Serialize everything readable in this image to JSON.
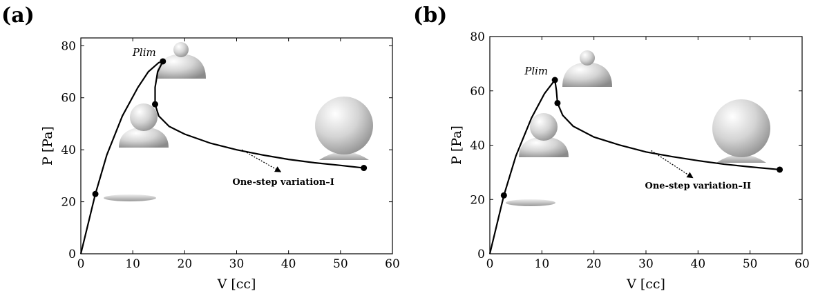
{
  "chart_data": [
    {
      "type": "line",
      "panel_label": "(a)",
      "xlabel": "V [cc]",
      "ylabel": "P [Pa]",
      "xlim": [
        0,
        60
      ],
      "ylim": [
        0,
        83
      ],
      "xticks": [
        0,
        10,
        20,
        30,
        40,
        50,
        60
      ],
      "yticks": [
        0,
        20,
        40,
        60,
        80
      ],
      "limit_label": "Plim",
      "annotation": "One-step variation–I",
      "series": [
        {
          "color": "#000000",
          "x": [
            0,
            2.8,
            5,
            8,
            11,
            13,
            15,
            15.8,
            14.8,
            14.3,
            14.3,
            15,
            17,
            20,
            25,
            30,
            35,
            40,
            45,
            50,
            54.5
          ],
          "values": [
            0,
            23,
            38,
            53,
            64,
            70,
            73.5,
            74,
            70,
            64,
            57.5,
            53,
            49,
            46,
            42.5,
            40,
            38,
            36.3,
            35,
            34,
            33
          ]
        },
        {
          "color": "#000000",
          "x": [
            2.8,
            15.8,
            14.3,
            54.5
          ],
          "values": [
            23,
            74,
            57.5,
            33
          ]
        }
      ]
    },
    {
      "type": "line",
      "panel_label": "(b)",
      "xlabel": "V [cc]",
      "ylabel": "P [Pa]",
      "xlim": [
        0,
        60
      ],
      "ylim": [
        0,
        80
      ],
      "xticks": [
        0,
        10,
        20,
        30,
        40,
        50,
        60
      ],
      "yticks": [
        0,
        20,
        40,
        60,
        80
      ],
      "limit_label": "Plim",
      "annotation": "One-step variation–II",
      "series": [
        {
          "color": "#000000",
          "x": [
            0,
            2.7,
            5,
            8,
            10.5,
            12.5,
            12.8,
            13,
            14,
            16,
            20,
            25,
            30,
            35,
            40,
            45,
            50,
            55.7
          ],
          "values": [
            0,
            21.5,
            36,
            50,
            59,
            64,
            60,
            55.5,
            51,
            47,
            43,
            40,
            37.5,
            35.8,
            34.3,
            33,
            32,
            31
          ]
        },
        {
          "color": "#000000",
          "x": [
            2.7,
            12.5,
            13,
            55.7
          ],
          "values": [
            21.5,
            64,
            55.5,
            31
          ]
        }
      ]
    }
  ]
}
